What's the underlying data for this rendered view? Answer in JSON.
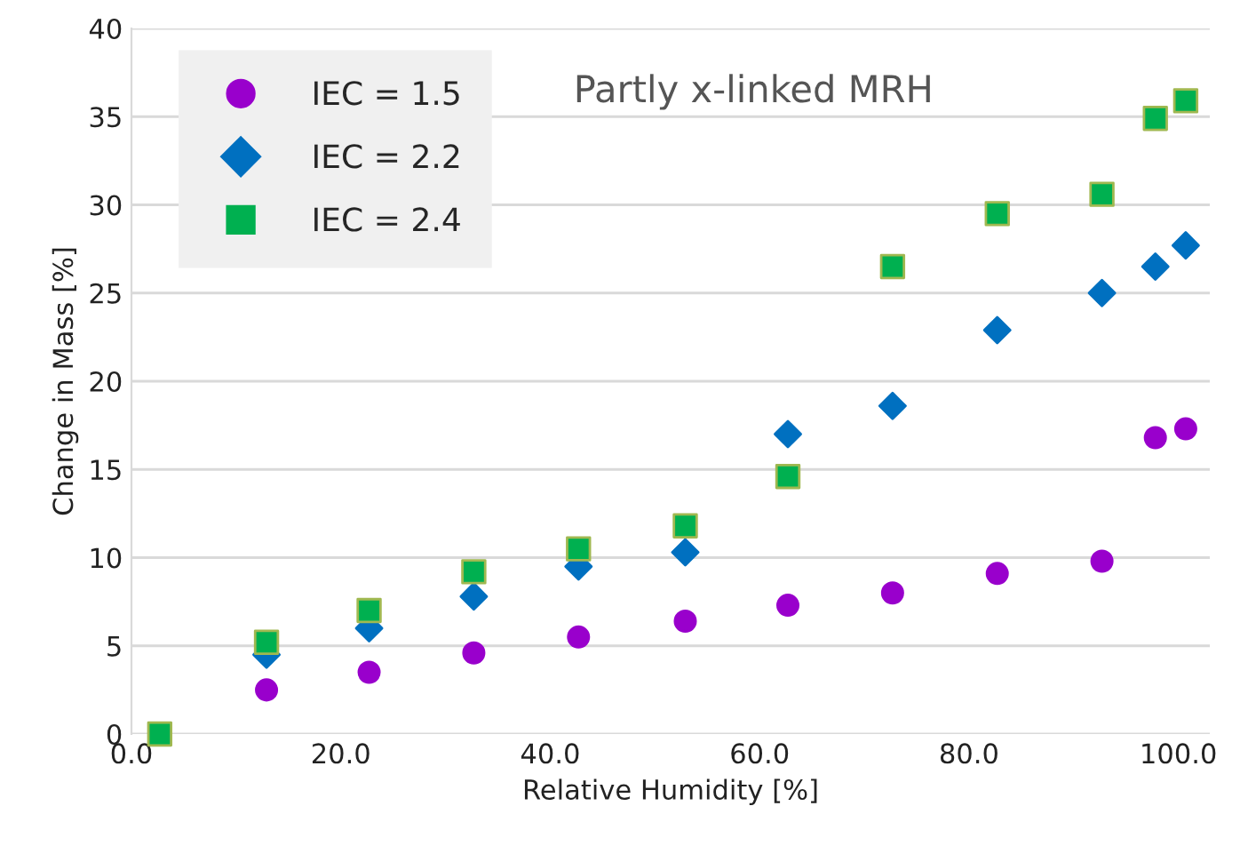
{
  "chart_data": {
    "type": "scatter",
    "xlabel": "Relative Humidity [%]",
    "ylabel": "Change in Mass [%]",
    "annotations": [
      "Partly x-linked MRH"
    ],
    "x": [
      2.7,
      12.9,
      22.7,
      32.7,
      42.7,
      52.9,
      62.7,
      72.7,
      82.7,
      92.7,
      97.8,
      100.7
    ],
    "series": [
      {
        "name": "IEC = 1.5",
        "color": "#9900cc",
        "marker": "circle",
        "values": [
          null,
          2.5,
          3.5,
          4.6,
          5.5,
          6.4,
          7.3,
          8.0,
          9.1,
          9.8,
          16.8,
          17.3
        ]
      },
      {
        "name": "IEC = 2.2",
        "color": "#0070c0",
        "marker": "diamond",
        "values": [
          null,
          4.5,
          6.0,
          7.8,
          9.5,
          10.3,
          17.0,
          18.6,
          22.9,
          25.0,
          26.5,
          27.7
        ]
      },
      {
        "name": "IEC = 2.4",
        "color": "#00b050",
        "marker": "square",
        "values": [
          0,
          5.2,
          7.0,
          9.2,
          10.5,
          11.8,
          14.6,
          26.5,
          29.5,
          30.6,
          34.9,
          35.9
        ]
      }
    ],
    "xlim": [
      0,
      103
    ],
    "ylim": [
      0,
      40
    ],
    "xticks": [
      {
        "value": 0,
        "label": "0.0"
      },
      {
        "value": 20,
        "label": "20.0"
      },
      {
        "value": 40,
        "label": "40.0"
      },
      {
        "value": 60,
        "label": "60.0"
      },
      {
        "value": 80,
        "label": "80.0"
      },
      {
        "value": 100,
        "label": "100.0"
      }
    ],
    "yticks": [
      0,
      5,
      10,
      15,
      20,
      25,
      30,
      35,
      40
    ],
    "grid": "y",
    "legend": "top left"
  }
}
